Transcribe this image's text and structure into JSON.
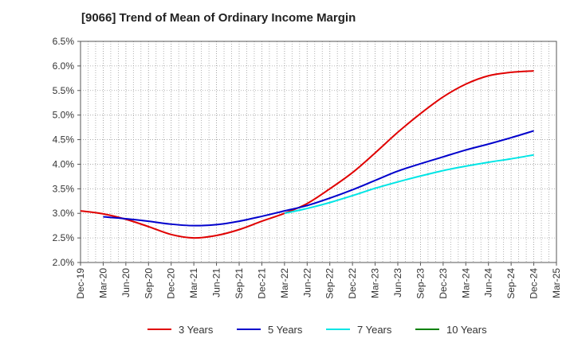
{
  "chart_data": {
    "type": "line",
    "title": "[9066]  Trend of Mean of Ordinary Income Margin",
    "xlabel": "",
    "ylabel": "",
    "x_ticks": [
      "Dec-19",
      "Mar-20",
      "Jun-20",
      "Sep-20",
      "Dec-20",
      "Mar-21",
      "Jun-21",
      "Sep-21",
      "Dec-21",
      "Mar-22",
      "Jun-22",
      "Sep-22",
      "Dec-22",
      "Mar-23",
      "Jun-23",
      "Sep-23",
      "Dec-23",
      "Mar-24",
      "Jun-24",
      "Sep-24",
      "Dec-24",
      "Mar-25"
    ],
    "y_ticks": [
      "2.0%",
      "2.5%",
      "3.0%",
      "3.5%",
      "4.0%",
      "4.5%",
      "5.0%",
      "5.5%",
      "6.0%",
      "6.5%"
    ],
    "ylim": [
      2.0,
      6.5
    ],
    "grid": true,
    "legend_position": "bottom",
    "series": [
      {
        "name": "3 Years",
        "color": "#e00000",
        "x": [
          "Dec-19",
          "Mar-20",
          "Jun-20",
          "Sep-20",
          "Dec-20",
          "Mar-21",
          "Jun-21",
          "Sep-21",
          "Dec-21",
          "Mar-22",
          "Jun-22",
          "Sep-22",
          "Dec-22",
          "Mar-23",
          "Jun-23",
          "Sep-23",
          "Dec-23",
          "Mar-24",
          "Jun-24",
          "Sep-24",
          "Dec-24"
        ],
        "values": [
          3.05,
          2.99,
          2.88,
          2.73,
          2.57,
          2.5,
          2.55,
          2.67,
          2.84,
          3.0,
          3.2,
          3.5,
          3.83,
          4.23,
          4.65,
          5.03,
          5.37,
          5.63,
          5.8,
          5.87,
          5.9
        ]
      },
      {
        "name": "5 Years",
        "color": "#0000cc",
        "x": [
          "Mar-20",
          "Jun-20",
          "Sep-20",
          "Dec-20",
          "Mar-21",
          "Jun-21",
          "Sep-21",
          "Dec-21",
          "Mar-22",
          "Jun-22",
          "Sep-22",
          "Dec-22",
          "Mar-23",
          "Jun-23",
          "Sep-23",
          "Dec-23",
          "Mar-24",
          "Jun-24",
          "Sep-24",
          "Dec-24"
        ],
        "values": [
          2.93,
          2.89,
          2.84,
          2.78,
          2.75,
          2.77,
          2.84,
          2.94,
          3.05,
          3.16,
          3.31,
          3.48,
          3.67,
          3.86,
          4.01,
          4.15,
          4.29,
          4.41,
          4.54,
          4.68
        ]
      },
      {
        "name": "7 Years",
        "color": "#00e5e5",
        "x": [
          "Mar-22",
          "Jun-22",
          "Sep-22",
          "Dec-22",
          "Mar-23",
          "Jun-23",
          "Sep-23",
          "Dec-23",
          "Mar-24",
          "Jun-24",
          "Sep-24",
          "Dec-24"
        ],
        "values": [
          3.0,
          3.1,
          3.22,
          3.36,
          3.51,
          3.64,
          3.76,
          3.87,
          3.96,
          4.04,
          4.11,
          4.19
        ]
      },
      {
        "name": "10 Years",
        "color": "#008000",
        "x": [],
        "values": []
      }
    ]
  }
}
